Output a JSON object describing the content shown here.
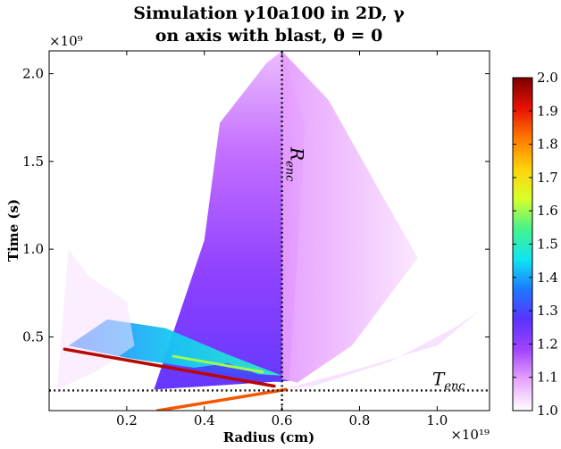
{
  "chart_data": {
    "type": "heatmap",
    "title_line1": "Simulation γ10a100 in 2D, γ",
    "title_line2": "on axis with blast, θ = 0",
    "xlabel": "Radius (cm)",
    "ylabel": "Time (s)",
    "x_multiplier": "×10¹⁹",
    "y_multiplier": "×10⁹",
    "xlim": [
      0.0,
      1.135
    ],
    "ylim": [
      0.08,
      2.13
    ],
    "x_ticks": [
      0.2,
      0.4,
      0.6,
      0.8,
      1.0
    ],
    "x_tick_labels": [
      "0.2",
      "0.4",
      "0.6",
      "0.8",
      "1.0"
    ],
    "y_ticks": [
      0.5,
      1.0,
      1.5,
      2.0
    ],
    "y_tick_labels": [
      "0.5",
      "1.0",
      "1.5",
      "2.0"
    ],
    "colorbar": {
      "min": 1.0,
      "max": 2.0,
      "ticks": [
        1.0,
        1.1,
        1.2,
        1.3,
        1.4,
        1.5,
        1.6,
        1.7,
        1.8,
        1.9,
        2.0
      ],
      "tick_labels": [
        "1.0",
        "1.1",
        "1.2",
        "1.3",
        "1.4",
        "1.5",
        "1.6",
        "1.7",
        "1.8",
        "1.9",
        "2.0"
      ],
      "colormap_stops": [
        "#ffffff",
        "#e8a6ff",
        "#a244ff",
        "#5a32ff",
        "#1d78ff",
        "#10e6f0",
        "#46f28e",
        "#d8ff2a",
        "#ffd20a",
        "#ff7a00",
        "#e81000",
        "#7a0000"
      ]
    },
    "annotations": [
      {
        "label": "R_enc",
        "text_main": "R",
        "text_sub": "enc",
        "orientation": "vertical",
        "value": 0.6
      },
      {
        "label": "T_enc",
        "text_main": "T",
        "text_sub": "enc",
        "orientation": "horizontal",
        "value": 0.195
      }
    ],
    "regions": [
      {
        "name": "main-fan",
        "gamma": 1.06,
        "polygon": [
          [
            0.27,
            0.2
          ],
          [
            0.4,
            1.05
          ],
          [
            0.44,
            1.72
          ],
          [
            0.56,
            2.06
          ],
          [
            0.6,
            2.13
          ],
          [
            0.66,
            1.7
          ],
          [
            0.62,
            0.25
          ]
        ]
      },
      {
        "name": "outer-halo",
        "gamma": 1.02,
        "polygon": [
          [
            0.6,
            0.26
          ],
          [
            0.6,
            2.13
          ],
          [
            0.72,
            1.85
          ],
          [
            0.86,
            1.3
          ],
          [
            0.95,
            0.95
          ],
          [
            0.78,
            0.45
          ],
          [
            0.64,
            0.24
          ]
        ]
      },
      {
        "name": "lower-right-tail",
        "gamma": 1.03,
        "polygon": [
          [
            0.6,
            0.2
          ],
          [
            0.8,
            0.32
          ],
          [
            1.0,
            0.45
          ],
          [
            1.11,
            0.65
          ],
          [
            1.05,
            0.56
          ],
          [
            0.88,
            0.36
          ],
          [
            0.68,
            0.22
          ]
        ]
      },
      {
        "name": "lower-band",
        "gamma": 1.15,
        "polygon": [
          [
            0.05,
            0.45
          ],
          [
            0.15,
            0.6
          ],
          [
            0.3,
            0.55
          ],
          [
            0.46,
            0.4
          ],
          [
            0.6,
            0.28
          ],
          [
            0.45,
            0.3
          ],
          [
            0.2,
            0.38
          ]
        ]
      },
      {
        "name": "left-blast",
        "gamma": 1.03,
        "polygon": [
          [
            0.02,
            0.2
          ],
          [
            0.05,
            1.0
          ],
          [
            0.1,
            0.85
          ],
          [
            0.2,
            0.7
          ],
          [
            0.22,
            0.45
          ],
          [
            0.12,
            0.3
          ]
        ]
      },
      {
        "name": "peak-wedge",
        "gamma": 1.3,
        "polygon": [
          [
            0.36,
            0.32
          ],
          [
            0.46,
            0.35
          ],
          [
            0.6,
            0.24
          ],
          [
            0.46,
            0.28
          ]
        ]
      }
    ],
    "shock_lines": [
      {
        "name": "upper-shock",
        "gamma": 1.95,
        "x": [
          0.04,
          0.58
        ],
        "y": [
          0.43,
          0.22
        ]
      },
      {
        "name": "lower-shock",
        "gamma": 1.85,
        "x": [
          0.28,
          0.61
        ],
        "y": [
          0.08,
          0.2
        ]
      },
      {
        "name": "secondary-shock",
        "gamma": 1.6,
        "x": [
          0.32,
          0.55
        ],
        "y": [
          0.39,
          0.3
        ]
      }
    ]
  }
}
